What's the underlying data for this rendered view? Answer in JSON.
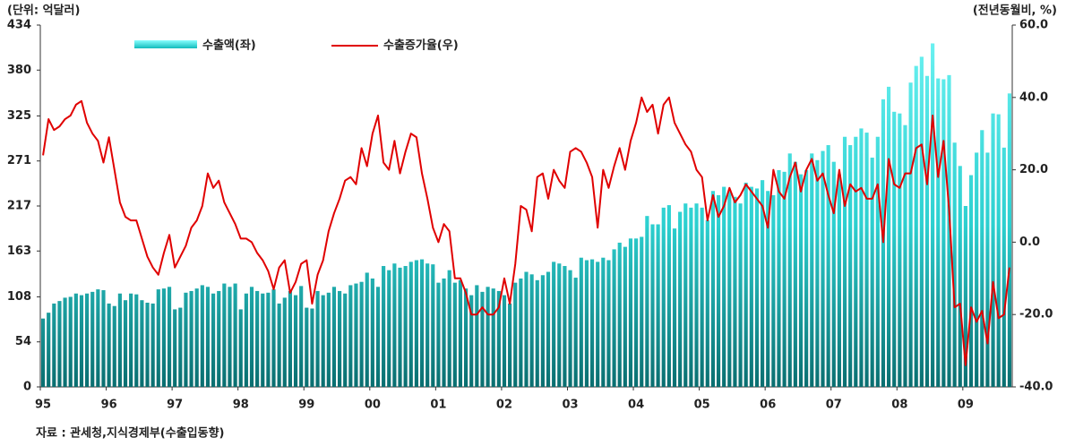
{
  "chart_data": {
    "type": "bar",
    "unit_left": "(단위: 억달러)",
    "unit_right": "(전년동월비, %)",
    "source": "자료 : 관세청,지식경제부(수출입동향)",
    "categories": [
      "95",
      null,
      null,
      null,
      null,
      null,
      null,
      null,
      null,
      null,
      null,
      null,
      "96",
      null,
      null,
      null,
      null,
      null,
      null,
      null,
      null,
      null,
      null,
      null,
      "97",
      null,
      null,
      null,
      null,
      null,
      null,
      null,
      null,
      null,
      null,
      null,
      "98",
      null,
      null,
      null,
      null,
      null,
      null,
      null,
      null,
      null,
      null,
      null,
      "99",
      null,
      null,
      null,
      null,
      null,
      null,
      null,
      null,
      null,
      null,
      null,
      "00",
      null,
      null,
      null,
      null,
      null,
      null,
      null,
      null,
      null,
      null,
      null,
      "01",
      null,
      null,
      null,
      null,
      null,
      null,
      null,
      null,
      null,
      null,
      null,
      "02",
      null,
      null,
      null,
      null,
      null,
      null,
      null,
      null,
      null,
      null,
      null,
      "03",
      null,
      null,
      null,
      null,
      null,
      null,
      null,
      null,
      null,
      null,
      null,
      "04",
      null,
      null,
      null,
      null,
      null,
      null,
      null,
      null,
      null,
      null,
      null,
      "05",
      null,
      null,
      null,
      null,
      null,
      null,
      null,
      null,
      null,
      null,
      null,
      "06",
      null,
      null,
      null,
      null,
      null,
      null,
      null,
      null,
      null,
      null,
      null,
      "07",
      null,
      null,
      null,
      null,
      null,
      null,
      null,
      null,
      null,
      null,
      null,
      "08",
      null,
      null,
      null,
      null,
      null,
      null,
      null,
      null,
      null,
      null,
      null,
      "09",
      null,
      null,
      null,
      null,
      null,
      null,
      null,
      null
    ],
    "series": [
      {
        "name": "수출액(좌)",
        "type": "bar",
        "color": "#2fd6d6",
        "values": [
          82,
          89,
          100,
          103,
          107,
          108,
          112,
          110,
          112,
          114,
          117,
          116,
          100,
          97,
          112,
          104,
          112,
          111,
          104,
          101,
          100,
          117,
          118,
          120,
          93,
          95,
          113,
          115,
          118,
          122,
          120,
          112,
          115,
          124,
          120,
          124,
          93,
          112,
          120,
          115,
          112,
          113,
          117,
          100,
          107,
          115,
          110,
          121,
          95,
          94,
          115,
          110,
          113,
          120,
          115,
          112,
          122,
          124,
          126,
          137,
          130,
          120,
          145,
          140,
          148,
          143,
          145,
          150,
          152,
          153,
          148,
          147,
          125,
          130,
          140,
          125,
          128,
          118,
          110,
          122,
          114,
          120,
          118,
          115,
          110,
          100,
          125,
          130,
          138,
          135,
          128,
          134,
          138,
          150,
          148,
          145,
          140,
          131,
          155,
          152,
          153,
          150,
          155,
          152,
          165,
          173,
          168,
          178,
          178,
          180,
          205,
          195,
          195,
          215,
          218,
          190,
          210,
          220,
          215,
          220,
          215,
          200,
          235,
          230,
          240,
          235,
          228,
          220,
          245,
          240,
          238,
          248,
          235,
          230,
          260,
          258,
          280,
          270,
          255,
          260,
          280,
          272,
          283,
          290,
          270,
          255,
          300,
          290,
          300,
          310,
          305,
          275,
          300,
          345,
          360,
          330,
          328,
          314,
          365,
          385,
          396,
          373,
          412,
          370,
          369,
          374,
          293,
          265,
          217,
          254,
          281,
          308,
          281,
          328,
          327,
          287,
          352
        ]
      },
      {
        "name": "수출증가율(우)",
        "type": "line",
        "axis": "y2",
        "color": "#e00000",
        "values": [
          24,
          34,
          31,
          32,
          34,
          35,
          38,
          39,
          33,
          30,
          28,
          22,
          29,
          20,
          11,
          7,
          6,
          6,
          1,
          -4,
          -7,
          -9,
          -3,
          2,
          -7,
          -4,
          -1,
          4,
          6,
          10,
          19,
          15,
          17,
          11,
          8,
          5,
          1,
          1,
          0,
          -3,
          -5,
          -8,
          -13,
          -7,
          -5,
          -14,
          -11,
          -6,
          -5,
          -17,
          -9,
          -5,
          3,
          8,
          12,
          17,
          18,
          16,
          26,
          21,
          30,
          35,
          22,
          20,
          28,
          19,
          25,
          30,
          29,
          19,
          12,
          4,
          0,
          5,
          3,
          -10,
          -10,
          -14,
          -20,
          -20,
          -18,
          -20,
          -20,
          -18,
          -10,
          -17,
          -6,
          10,
          9,
          3,
          18,
          19,
          12,
          20,
          17,
          15,
          25,
          26,
          25,
          22,
          18,
          4,
          20,
          15,
          21,
          26,
          20,
          28,
          33,
          40,
          36,
          38,
          30,
          38,
          40,
          33,
          30,
          27,
          25,
          20,
          18,
          6,
          13,
          7,
          10,
          15,
          11,
          13,
          16,
          14,
          12,
          10,
          4,
          20,
          14,
          12,
          18,
          22,
          14,
          20,
          23,
          17,
          19,
          13,
          8,
          20,
          10,
          16,
          14,
          15,
          12,
          12,
          16,
          0,
          23,
          16,
          15,
          19,
          19,
          26,
          27,
          16,
          35,
          18,
          28,
          9,
          -18,
          -17,
          -34,
          -18,
          -22,
          -19,
          -28,
          -11,
          -21,
          -20,
          -7
        ]
      }
    ],
    "ylim": [
      0,
      434
    ],
    "yticks": [
      0,
      54,
      108,
      163,
      217,
      271,
      325,
      380,
      434
    ],
    "y2lim": [
      -40,
      60
    ],
    "y2ticks": [
      {
        "value": -40,
        "label": "-40.0"
      },
      {
        "value": -20,
        "label": "-20.0"
      },
      {
        "value": 0,
        "label": "0.0"
      },
      {
        "value": 20,
        "label": "20.0"
      },
      {
        "value": 40,
        "label": "40.0"
      },
      {
        "value": 60,
        "label": "60.0"
      }
    ]
  }
}
